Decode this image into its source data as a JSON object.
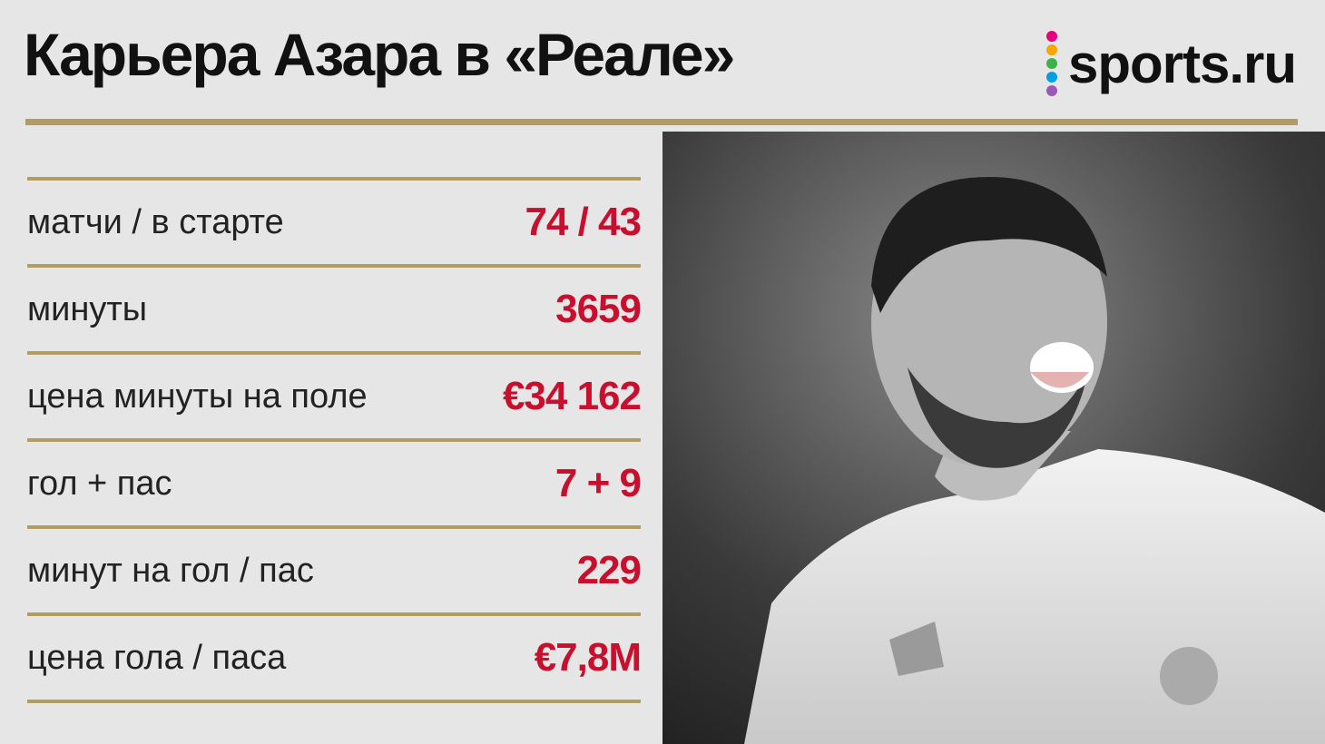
{
  "header": {
    "title": "Карьера Азара в «Реале»",
    "logo": "sports.ru"
  },
  "table": {
    "rows": [
      [
        "матчи / в старте",
        "74 / 43"
      ],
      [
        "минуты",
        "3659"
      ],
      [
        "цена минуты на поле",
        "€34 162"
      ],
      [
        "гол + пас",
        "7 + 9"
      ],
      [
        "минут на гол / пас",
        "229"
      ],
      [
        "цена гола / паса",
        "€7,8М"
      ]
    ]
  }
}
